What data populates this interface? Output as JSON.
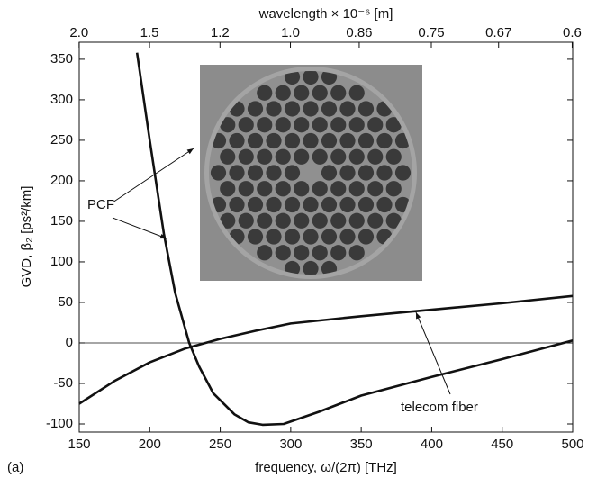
{
  "chart_data": {
    "type": "line",
    "xlabel": "frequency, ω/(2π)   [THz]",
    "ylabel": "GVD, β₂ [ps²/km]",
    "x2label": "wavelength × 10⁻⁶  [m]",
    "xlim": [
      150,
      500
    ],
    "xticks": [
      150,
      200,
      250,
      300,
      350,
      400,
      450,
      500
    ],
    "ylim": [
      -110,
      371
    ],
    "yticks": [
      -100,
      -50,
      0,
      50,
      100,
      150,
      200,
      250,
      300,
      350
    ],
    "x2ticks": [
      {
        "value": 2,
        "label": "2.0"
      },
      1.5,
      1.2,
      {
        "value": 1,
        "label": "1.0"
      },
      0.86,
      0.75,
      0.67,
      0.6
    ],
    "series": [
      {
        "name": "PCF",
        "color": "#111111",
        "x": [
          191,
          200,
          210,
          218,
          228,
          235,
          245,
          260,
          270,
          280,
          295,
          320,
          350,
          400,
          450,
          500
        ],
        "values": [
          358,
          250,
          135,
          62,
          0,
          -29,
          -62,
          -88,
          -98,
          -101,
          -100,
          -85,
          -65,
          -42,
          -20,
          3
        ]
      },
      {
        "name": "telecom fiber",
        "color": "#111111",
        "x": [
          150,
          175,
          200,
          225,
          250,
          275,
          300,
          350,
          400,
          450,
          500
        ],
        "values": [
          -75,
          -47,
          -24,
          -7,
          5,
          15,
          24,
          33,
          41,
          49,
          58
        ]
      }
    ],
    "annotations": [
      {
        "text": "(a)"
      }
    ]
  }
}
